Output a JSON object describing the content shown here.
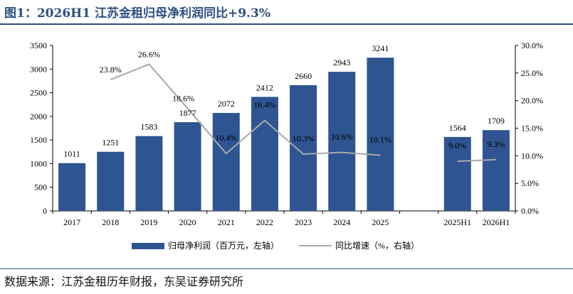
{
  "title": "图1：2026H1 江苏金租归母净利润同比+9.3%",
  "source": "数据来源：江苏金租历年财报，东吴证券研究所",
  "chart_data": {
    "type": "bar",
    "categories": [
      "2017",
      "2018",
      "2019",
      "2020",
      "2021",
      "2022",
      "2023",
      "2024",
      "2025",
      "",
      "2025H1",
      "2026H1"
    ],
    "series": [
      {
        "name": "归母净利润（百万元，左轴）",
        "type": "bar",
        "axis": "left",
        "color": "#2e5591",
        "values": [
          1011,
          1251,
          1583,
          1877,
          2072,
          2412,
          2660,
          2943,
          3241,
          null,
          1564,
          1709
        ],
        "labels": [
          "1011",
          "1251",
          "1583",
          "1877",
          "2072",
          "2412",
          "2660",
          "2943",
          "3241",
          "",
          "1564",
          "1709"
        ]
      },
      {
        "name": "同比增速（%，右轴）",
        "type": "line",
        "axis": "right",
        "color": "#a8a8a8",
        "values": [
          null,
          23.8,
          26.6,
          18.6,
          10.4,
          16.4,
          10.3,
          10.6,
          10.1,
          null,
          9.0,
          9.3
        ],
        "labels": [
          "",
          "23.8%",
          "26.6%",
          "18.6%",
          "10.4%",
          "16.4%",
          "10.3%",
          "10.6%",
          "10.1%",
          "",
          "9.0%",
          "9.3%"
        ]
      }
    ],
    "y_left": {
      "min": 0,
      "max": 3500,
      "ticks": [
        "0",
        "500",
        "1000",
        "1500",
        "2000",
        "2500",
        "3000",
        "3500"
      ]
    },
    "y_right": {
      "min": 0,
      "max": 30,
      "ticks": [
        "0.0%",
        "5.0%",
        "10.0%",
        "15.0%",
        "20.0%",
        "25.0%",
        "30.0%"
      ]
    },
    "legend_position": "bottom-center",
    "grid": false
  }
}
